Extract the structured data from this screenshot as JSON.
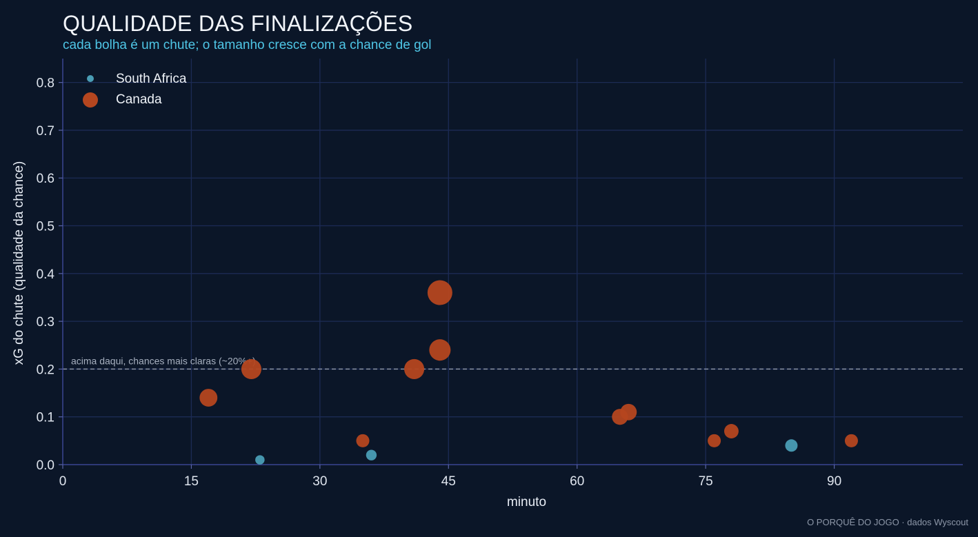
{
  "chart_data": {
    "type": "scatter",
    "title": "QUALIDADE DAS FINALIZAÇÕES",
    "subtitle": "cada bolha é um chute; o tamanho cresce com a chance de gol",
    "xlabel": "minuto",
    "ylabel": "xG do chute (qualidade da chance)",
    "xlim": [
      0,
      105
    ],
    "ylim": [
      0,
      0.85
    ],
    "xticks": [
      0,
      15,
      30,
      45,
      60,
      75,
      90
    ],
    "yticks": [
      0.0,
      0.1,
      0.2,
      0.3,
      0.4,
      0.5,
      0.6,
      0.7,
      0.8
    ],
    "x_tick_labels": [
      "0",
      "15",
      "30",
      "45",
      "60",
      "75",
      "90"
    ],
    "y_tick_labels": [
      "0.0",
      "0.1",
      "0.2",
      "0.3",
      "0.4",
      "0.5",
      "0.6",
      "0.7",
      "0.8"
    ],
    "grid": true,
    "legend_position": "top-left",
    "reference_line": {
      "y": 0.2,
      "label": "acima daqui, chances mais claras (~20%+)"
    },
    "series": [
      {
        "name": "South Africa",
        "color": "#4a9db5",
        "points": [
          {
            "x": 23,
            "y": 0.01
          },
          {
            "x": 36,
            "y": 0.02
          },
          {
            "x": 85,
            "y": 0.04
          }
        ]
      },
      {
        "name": "Canada",
        "color": "#b5461f",
        "points": [
          {
            "x": 17,
            "y": 0.14
          },
          {
            "x": 22,
            "y": 0.2
          },
          {
            "x": 35,
            "y": 0.05
          },
          {
            "x": 41,
            "y": 0.2
          },
          {
            "x": 44,
            "y": 0.36
          },
          {
            "x": 44,
            "y": 0.24
          },
          {
            "x": 65,
            "y": 0.1
          },
          {
            "x": 66,
            "y": 0.11
          },
          {
            "x": 76,
            "y": 0.05
          },
          {
            "x": 78,
            "y": 0.07
          },
          {
            "x": 92,
            "y": 0.05
          }
        ]
      }
    ]
  },
  "credit": "O PORQUÊ DO JOGO · dados Wyscout"
}
